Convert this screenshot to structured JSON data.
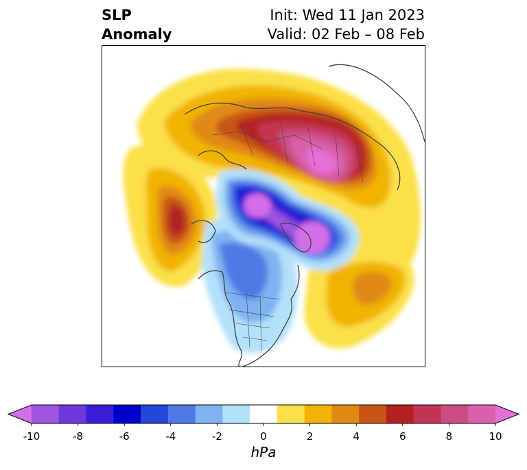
{
  "header": {
    "variable_line1": "SLP",
    "variable_line2": "Anomaly",
    "init": "Init: Wed 11 Jan 2023",
    "valid": "Valid: 02 Feb – 08 Feb"
  },
  "colorbar": {
    "units": "hPa",
    "tick_labels": [
      "-10",
      "-8",
      "-6",
      "-4",
      "-2",
      "0",
      "2",
      "4",
      "6",
      "8",
      "10"
    ],
    "colors": [
      "#d36ee8",
      "#9e55e0",
      "#6e38da",
      "#3a1fd6",
      "#0000cc",
      "#2546db",
      "#4f7ae6",
      "#7fb2f0",
      "#b3e0fb",
      "#ffffff",
      "#fbe04a",
      "#f1b400",
      "#e08a12",
      "#c85516",
      "#b32222",
      "#c23451",
      "#cc4d82",
      "#d860ac",
      "#e56fd6"
    ]
  },
  "map": {
    "projection": "north-polar stereographic",
    "field": "sea level pressure anomaly"
  }
}
